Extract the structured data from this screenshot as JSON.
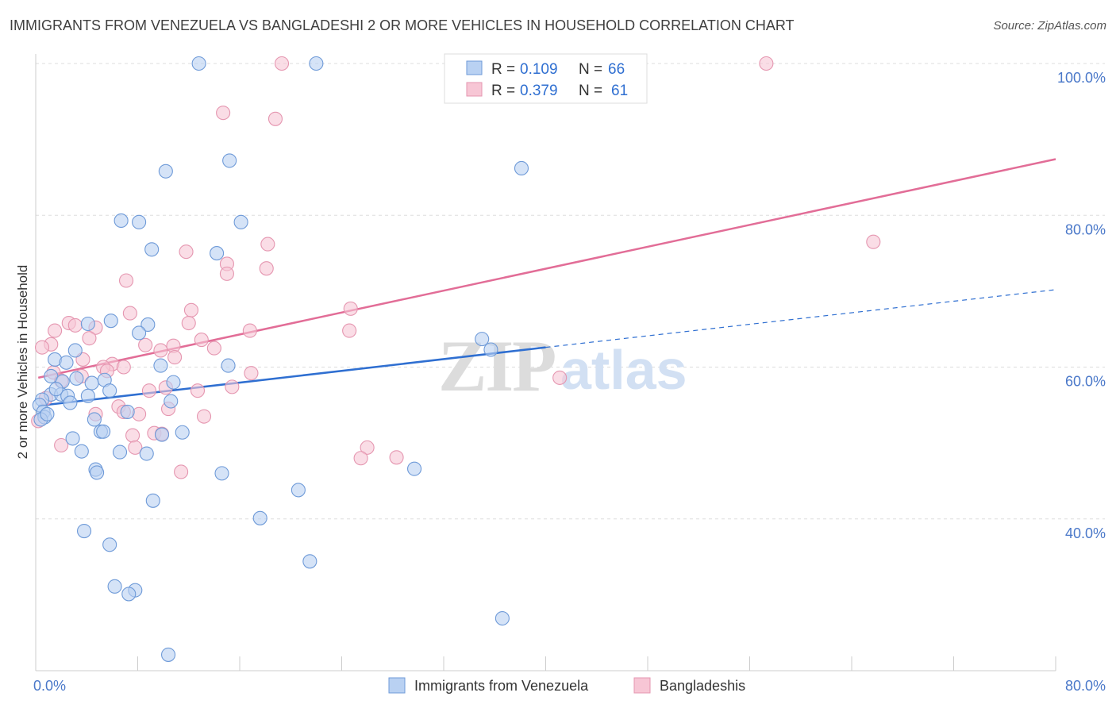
{
  "title": "IMMIGRANTS FROM VENEZUELA VS BANGLADESHI 2 OR MORE VEHICLES IN HOUSEHOLD CORRELATION CHART",
  "source": "Source: ZipAtlas.com",
  "colors": {
    "blue_fill": "#b9d1f2",
    "blue_stroke": "#6e9ad8",
    "blue_line": "#2f6fd1",
    "pink_fill": "#f7c6d5",
    "pink_stroke": "#e596b0",
    "pink_line": "#e26d97",
    "tick_text": "#4a78c9",
    "grid": "#dddddd"
  },
  "legend": {
    "rows": [
      {
        "r_label": "R = ",
        "r_value": "0.109",
        "n_label": "N = ",
        "n_value": "66"
      },
      {
        "r_label": "R = ",
        "r_value": "0.379",
        "n_label": "N = ",
        "n_value": "61"
      }
    ]
  },
  "watermark": {
    "zip": "ZIP",
    "atlas": "atlas"
  },
  "chart_data": {
    "type": "scatter",
    "title": "IMMIGRANTS FROM VENEZUELA VS BANGLADESHI 2 OR MORE VEHICLES IN HOUSEHOLD CORRELATION CHART",
    "xlabel": "",
    "ylabel": "2 or more Vehicles in Household",
    "xlim": [
      0,
      80
    ],
    "ylim": [
      20,
      100
    ],
    "x_tick_labels": [
      {
        "value": 0,
        "label": "0.0%"
      },
      {
        "value": 80,
        "label": "80.0%"
      }
    ],
    "y_tick_labels": [
      {
        "value": 100,
        "label": "100.0%"
      },
      {
        "value": 80,
        "label": "80.0%"
      },
      {
        "value": 60,
        "label": "60.0%"
      },
      {
        "value": 40,
        "label": "40.0%"
      }
    ],
    "grid": true,
    "legend_position": "top-center",
    "series": [
      {
        "name": "Immigrants from Venezuela",
        "color": "#b9d1f2",
        "R": 0.109,
        "N": 66,
        "trend": {
          "x_start": 0.2,
          "y_start": 54.9,
          "x_end": 40,
          "y_end": 62.6,
          "dashed_x_end": 80,
          "dashed_y_end": 70.2
        },
        "points": [
          [
            12.8,
            100.0
          ],
          [
            22.0,
            100.0
          ],
          [
            15.2,
            87.2
          ],
          [
            10.2,
            85.8
          ],
          [
            38.1,
            86.2
          ],
          [
            6.7,
            79.3
          ],
          [
            8.1,
            79.1
          ],
          [
            16.1,
            79.1
          ],
          [
            9.1,
            75.5
          ],
          [
            14.2,
            75.0
          ],
          [
            5.9,
            66.1
          ],
          [
            4.1,
            65.7
          ],
          [
            8.8,
            65.6
          ],
          [
            8.1,
            64.5
          ],
          [
            35.0,
            63.7
          ],
          [
            3.1,
            62.2
          ],
          [
            35.7,
            62.3
          ],
          [
            1.5,
            61.0
          ],
          [
            2.4,
            60.6
          ],
          [
            9.8,
            60.2
          ],
          [
            15.1,
            60.2
          ],
          [
            1.2,
            58.8
          ],
          [
            4.4,
            57.9
          ],
          [
            5.4,
            58.3
          ],
          [
            2.1,
            58.1
          ],
          [
            10.8,
            58.0
          ],
          [
            3.2,
            58.5
          ],
          [
            5.8,
            56.9
          ],
          [
            4.1,
            56.2
          ],
          [
            1.2,
            56.4
          ],
          [
            2.0,
            56.4
          ],
          [
            2.5,
            56.2
          ],
          [
            0.5,
            55.7
          ],
          [
            0.3,
            55.0
          ],
          [
            2.7,
            55.3
          ],
          [
            0.6,
            54.1
          ],
          [
            0.7,
            53.4
          ],
          [
            0.4,
            53.1
          ],
          [
            10.6,
            55.5
          ],
          [
            7.2,
            54.1
          ],
          [
            4.6,
            53.1
          ],
          [
            5.1,
            51.5
          ],
          [
            5.3,
            51.5
          ],
          [
            11.5,
            51.4
          ],
          [
            2.9,
            50.6
          ],
          [
            9.9,
            51.1
          ],
          [
            6.6,
            48.8
          ],
          [
            8.7,
            48.6
          ],
          [
            3.6,
            48.9
          ],
          [
            4.7,
            46.5
          ],
          [
            4.8,
            46.1
          ],
          [
            14.6,
            46.0
          ],
          [
            29.7,
            46.6
          ],
          [
            20.6,
            43.8
          ],
          [
            9.2,
            42.4
          ],
          [
            17.6,
            40.1
          ],
          [
            3.8,
            38.4
          ],
          [
            5.8,
            36.6
          ],
          [
            21.5,
            34.4
          ],
          [
            6.2,
            31.1
          ],
          [
            7.8,
            30.6
          ],
          [
            7.3,
            30.1
          ],
          [
            36.6,
            26.9
          ],
          [
            10.4,
            22.1
          ],
          [
            0.9,
            53.8
          ],
          [
            1.6,
            57.1
          ]
        ]
      },
      {
        "name": "Bangladeshis",
        "color": "#f7c6d5",
        "R": 0.379,
        "N": 61,
        "trend": {
          "x_start": 0.2,
          "y_start": 58.6,
          "x_end": 80,
          "y_end": 87.4
        },
        "points": [
          [
            19.3,
            100.0
          ],
          [
            57.3,
            100.0
          ],
          [
            14.7,
            93.5
          ],
          [
            18.8,
            92.7
          ],
          [
            65.7,
            76.5
          ],
          [
            18.2,
            76.2
          ],
          [
            11.8,
            75.2
          ],
          [
            15.0,
            73.6
          ],
          [
            18.1,
            73.0
          ],
          [
            15.0,
            72.3
          ],
          [
            7.1,
            71.4
          ],
          [
            12.2,
            67.5
          ],
          [
            24.7,
            67.7
          ],
          [
            7.4,
            67.1
          ],
          [
            2.6,
            65.8
          ],
          [
            4.7,
            65.2
          ],
          [
            12.0,
            65.8
          ],
          [
            16.8,
            64.8
          ],
          [
            24.6,
            64.8
          ],
          [
            1.5,
            64.8
          ],
          [
            3.1,
            65.5
          ],
          [
            1.2,
            63.0
          ],
          [
            4.2,
            63.8
          ],
          [
            13.0,
            63.6
          ],
          [
            8.6,
            62.9
          ],
          [
            10.8,
            62.8
          ],
          [
            9.8,
            62.2
          ],
          [
            14.0,
            62.5
          ],
          [
            0.5,
            62.6
          ],
          [
            3.7,
            61.0
          ],
          [
            6.0,
            60.4
          ],
          [
            10.9,
            61.3
          ],
          [
            5.3,
            60.0
          ],
          [
            6.9,
            60.0
          ],
          [
            5.6,
            59.5
          ],
          [
            1.4,
            59.3
          ],
          [
            16.9,
            59.2
          ],
          [
            3.6,
            58.8
          ],
          [
            2.0,
            58.2
          ],
          [
            41.1,
            58.6
          ],
          [
            10.2,
            57.3
          ],
          [
            15.4,
            57.4
          ],
          [
            8.9,
            56.9
          ],
          [
            12.7,
            56.9
          ],
          [
            6.5,
            54.8
          ],
          [
            10.4,
            54.5
          ],
          [
            4.7,
            53.8
          ],
          [
            6.9,
            54.1
          ],
          [
            8.1,
            53.8
          ],
          [
            13.2,
            53.5
          ],
          [
            7.6,
            51.0
          ],
          [
            9.3,
            51.3
          ],
          [
            9.9,
            51.2
          ],
          [
            2.0,
            49.7
          ],
          [
            7.8,
            49.4
          ],
          [
            26.0,
            49.4
          ],
          [
            25.5,
            48.0
          ],
          [
            28.3,
            48.1
          ],
          [
            11.4,
            46.2
          ],
          [
            0.2,
            52.9
          ],
          [
            0.8,
            55.9
          ]
        ]
      }
    ]
  }
}
